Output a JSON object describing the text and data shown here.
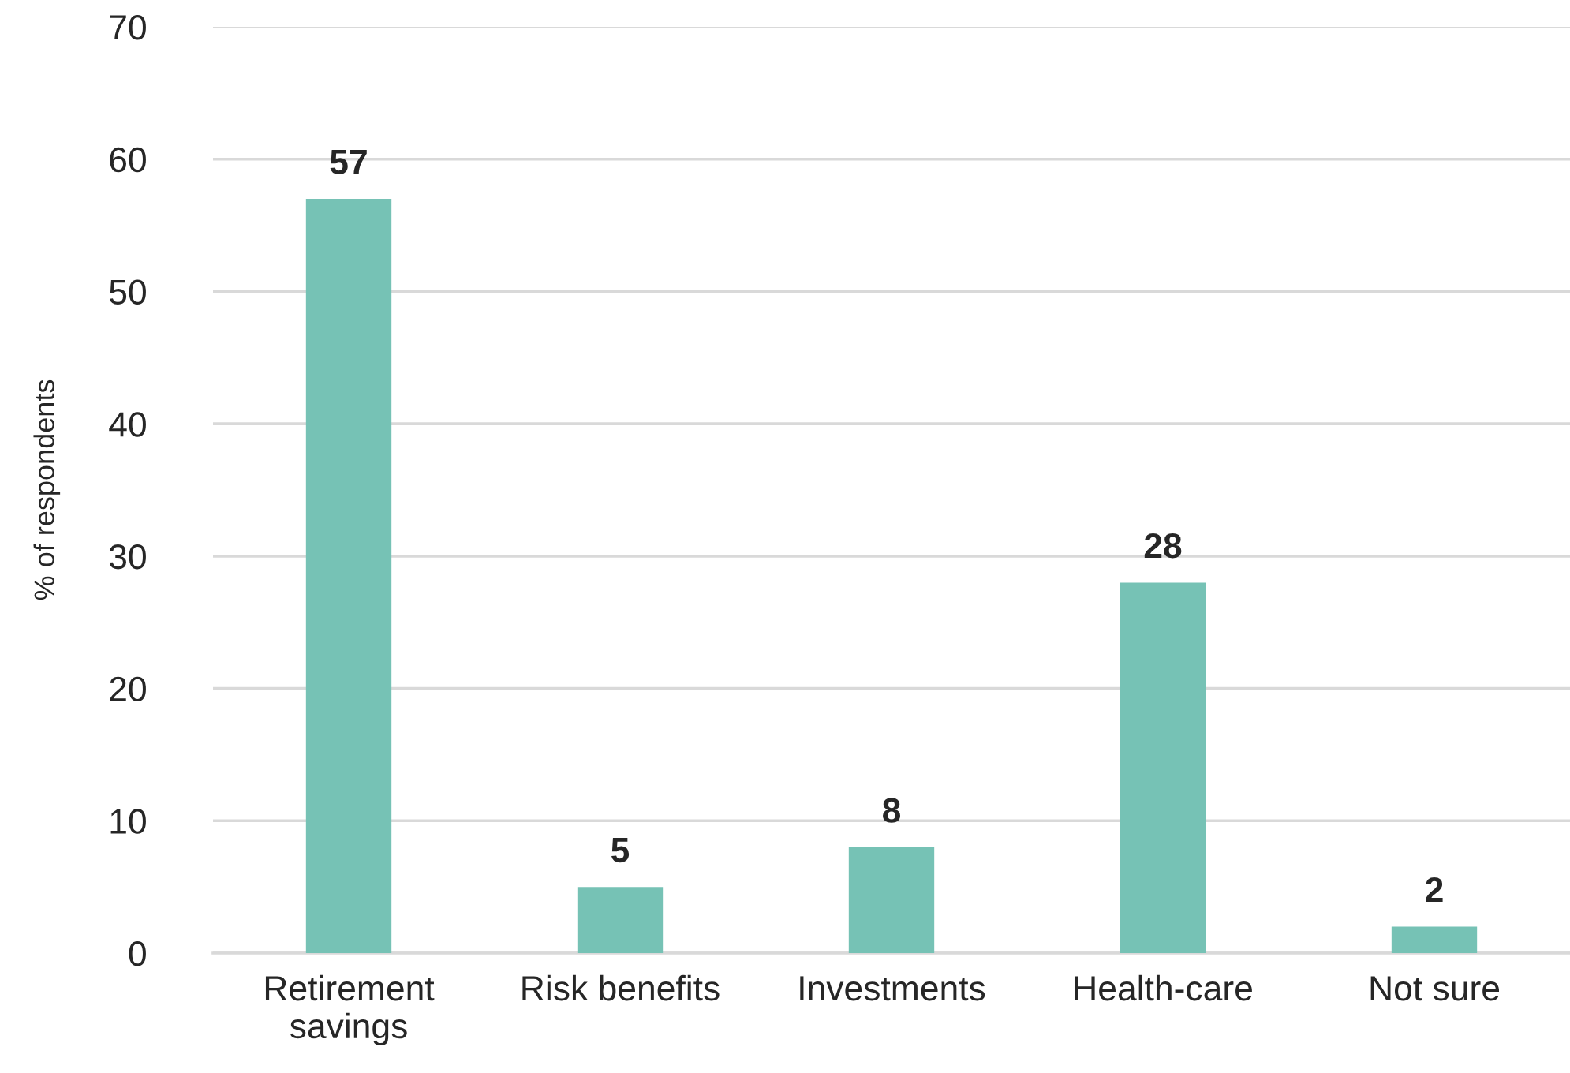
{
  "chart_data": {
    "type": "bar",
    "ylabel": "% of respondents",
    "categories": [
      "Retirement\nsavings",
      "Risk benefits",
      "Investments",
      "Health-care",
      "Not sure"
    ],
    "values": [
      57,
      5,
      8,
      28,
      2
    ],
    "color": "#76c2b5",
    "ylim": [
      0,
      70
    ],
    "yticks": [
      0,
      10,
      20,
      30,
      40,
      50,
      60,
      70
    ],
    "grid": "y",
    "data_labels": true
  }
}
